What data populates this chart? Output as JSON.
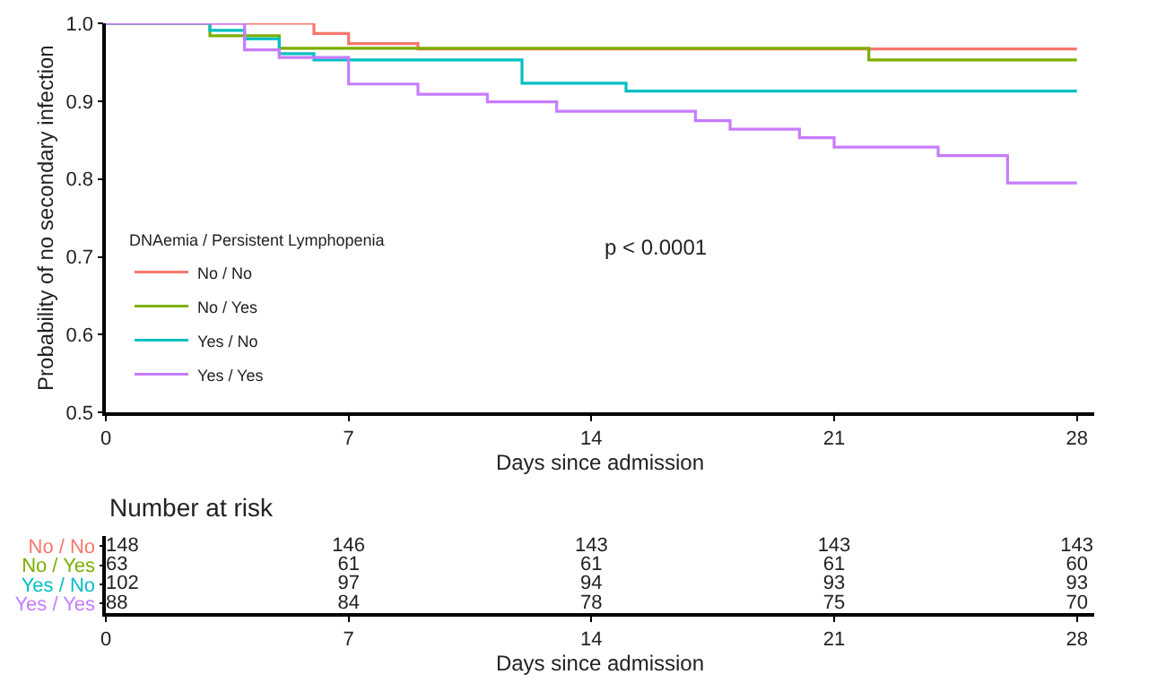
{
  "chart_data": [
    {
      "type": "step",
      "xlabel": "Days since admission",
      "ylabel": "Probability of no secondary infection",
      "legend_title": "DNAemia / Persistent Lymphopenia",
      "legend": "bottom left",
      "marker": "none",
      "line_style": "solid",
      "xlim": [
        0,
        28.5
      ],
      "xticks": [
        0,
        7,
        14,
        21,
        28
      ],
      "ylim": [
        0.5,
        1.0
      ],
      "yticks": [
        0.5,
        0.6,
        0.7,
        0.8,
        0.9,
        {
          "value": 1.0,
          "label": "1.0"
        }
      ],
      "annotations": [
        "p < 0.0001"
      ],
      "series": [
        {
          "name": "No / No",
          "color": "#f8766d",
          "x": [
            0,
            6,
            7,
            9,
            28
          ],
          "values": [
            1.0,
            0.987,
            0.974,
            0.967,
            0.967
          ]
        },
        {
          "name": "No / Yes",
          "color": "#7cae00",
          "x": [
            0,
            3,
            5,
            22,
            28
          ],
          "values": [
            1.0,
            0.984,
            0.968,
            0.953,
            0.953
          ]
        },
        {
          "name": "Yes / No",
          "color": "#00bfc4",
          "x": [
            0,
            3,
            4,
            5,
            6,
            12,
            15,
            28
          ],
          "values": [
            1.0,
            0.991,
            0.98,
            0.961,
            0.953,
            0.923,
            0.913,
            0.913
          ]
        },
        {
          "name": "Yes / Yes",
          "color": "#c77cff",
          "x": [
            0,
            4,
            5,
            7,
            9,
            11,
            13,
            17,
            18,
            20,
            21,
            24,
            26,
            28
          ],
          "values": [
            1.0,
            0.966,
            0.956,
            0.922,
            0.909,
            0.899,
            0.887,
            0.875,
            0.864,
            0.853,
            0.841,
            0.83,
            0.795,
            0.795
          ]
        }
      ]
    },
    {
      "type": "heatmap",
      "title": "Number at risk",
      "data_labels": true,
      "xlabel": "Days since admission",
      "xlim": [
        0,
        28.5
      ],
      "xticks": [
        0,
        7,
        14,
        21,
        28
      ],
      "x": [
        0,
        7,
        14,
        21,
        28
      ],
      "y_categories": [
        "No / No",
        "No / Yes",
        "Yes / No",
        "Yes / Yes"
      ],
      "colors": [
        "#f8766d",
        "#7cae00",
        "#00bfc4",
        "#c77cff"
      ],
      "cells": [
        [
          148,
          146,
          143,
          143,
          143
        ],
        [
          63,
          61,
          61,
          61,
          60
        ],
        [
          102,
          97,
          94,
          93,
          93
        ],
        [
          88,
          84,
          78,
          75,
          70
        ]
      ]
    }
  ]
}
